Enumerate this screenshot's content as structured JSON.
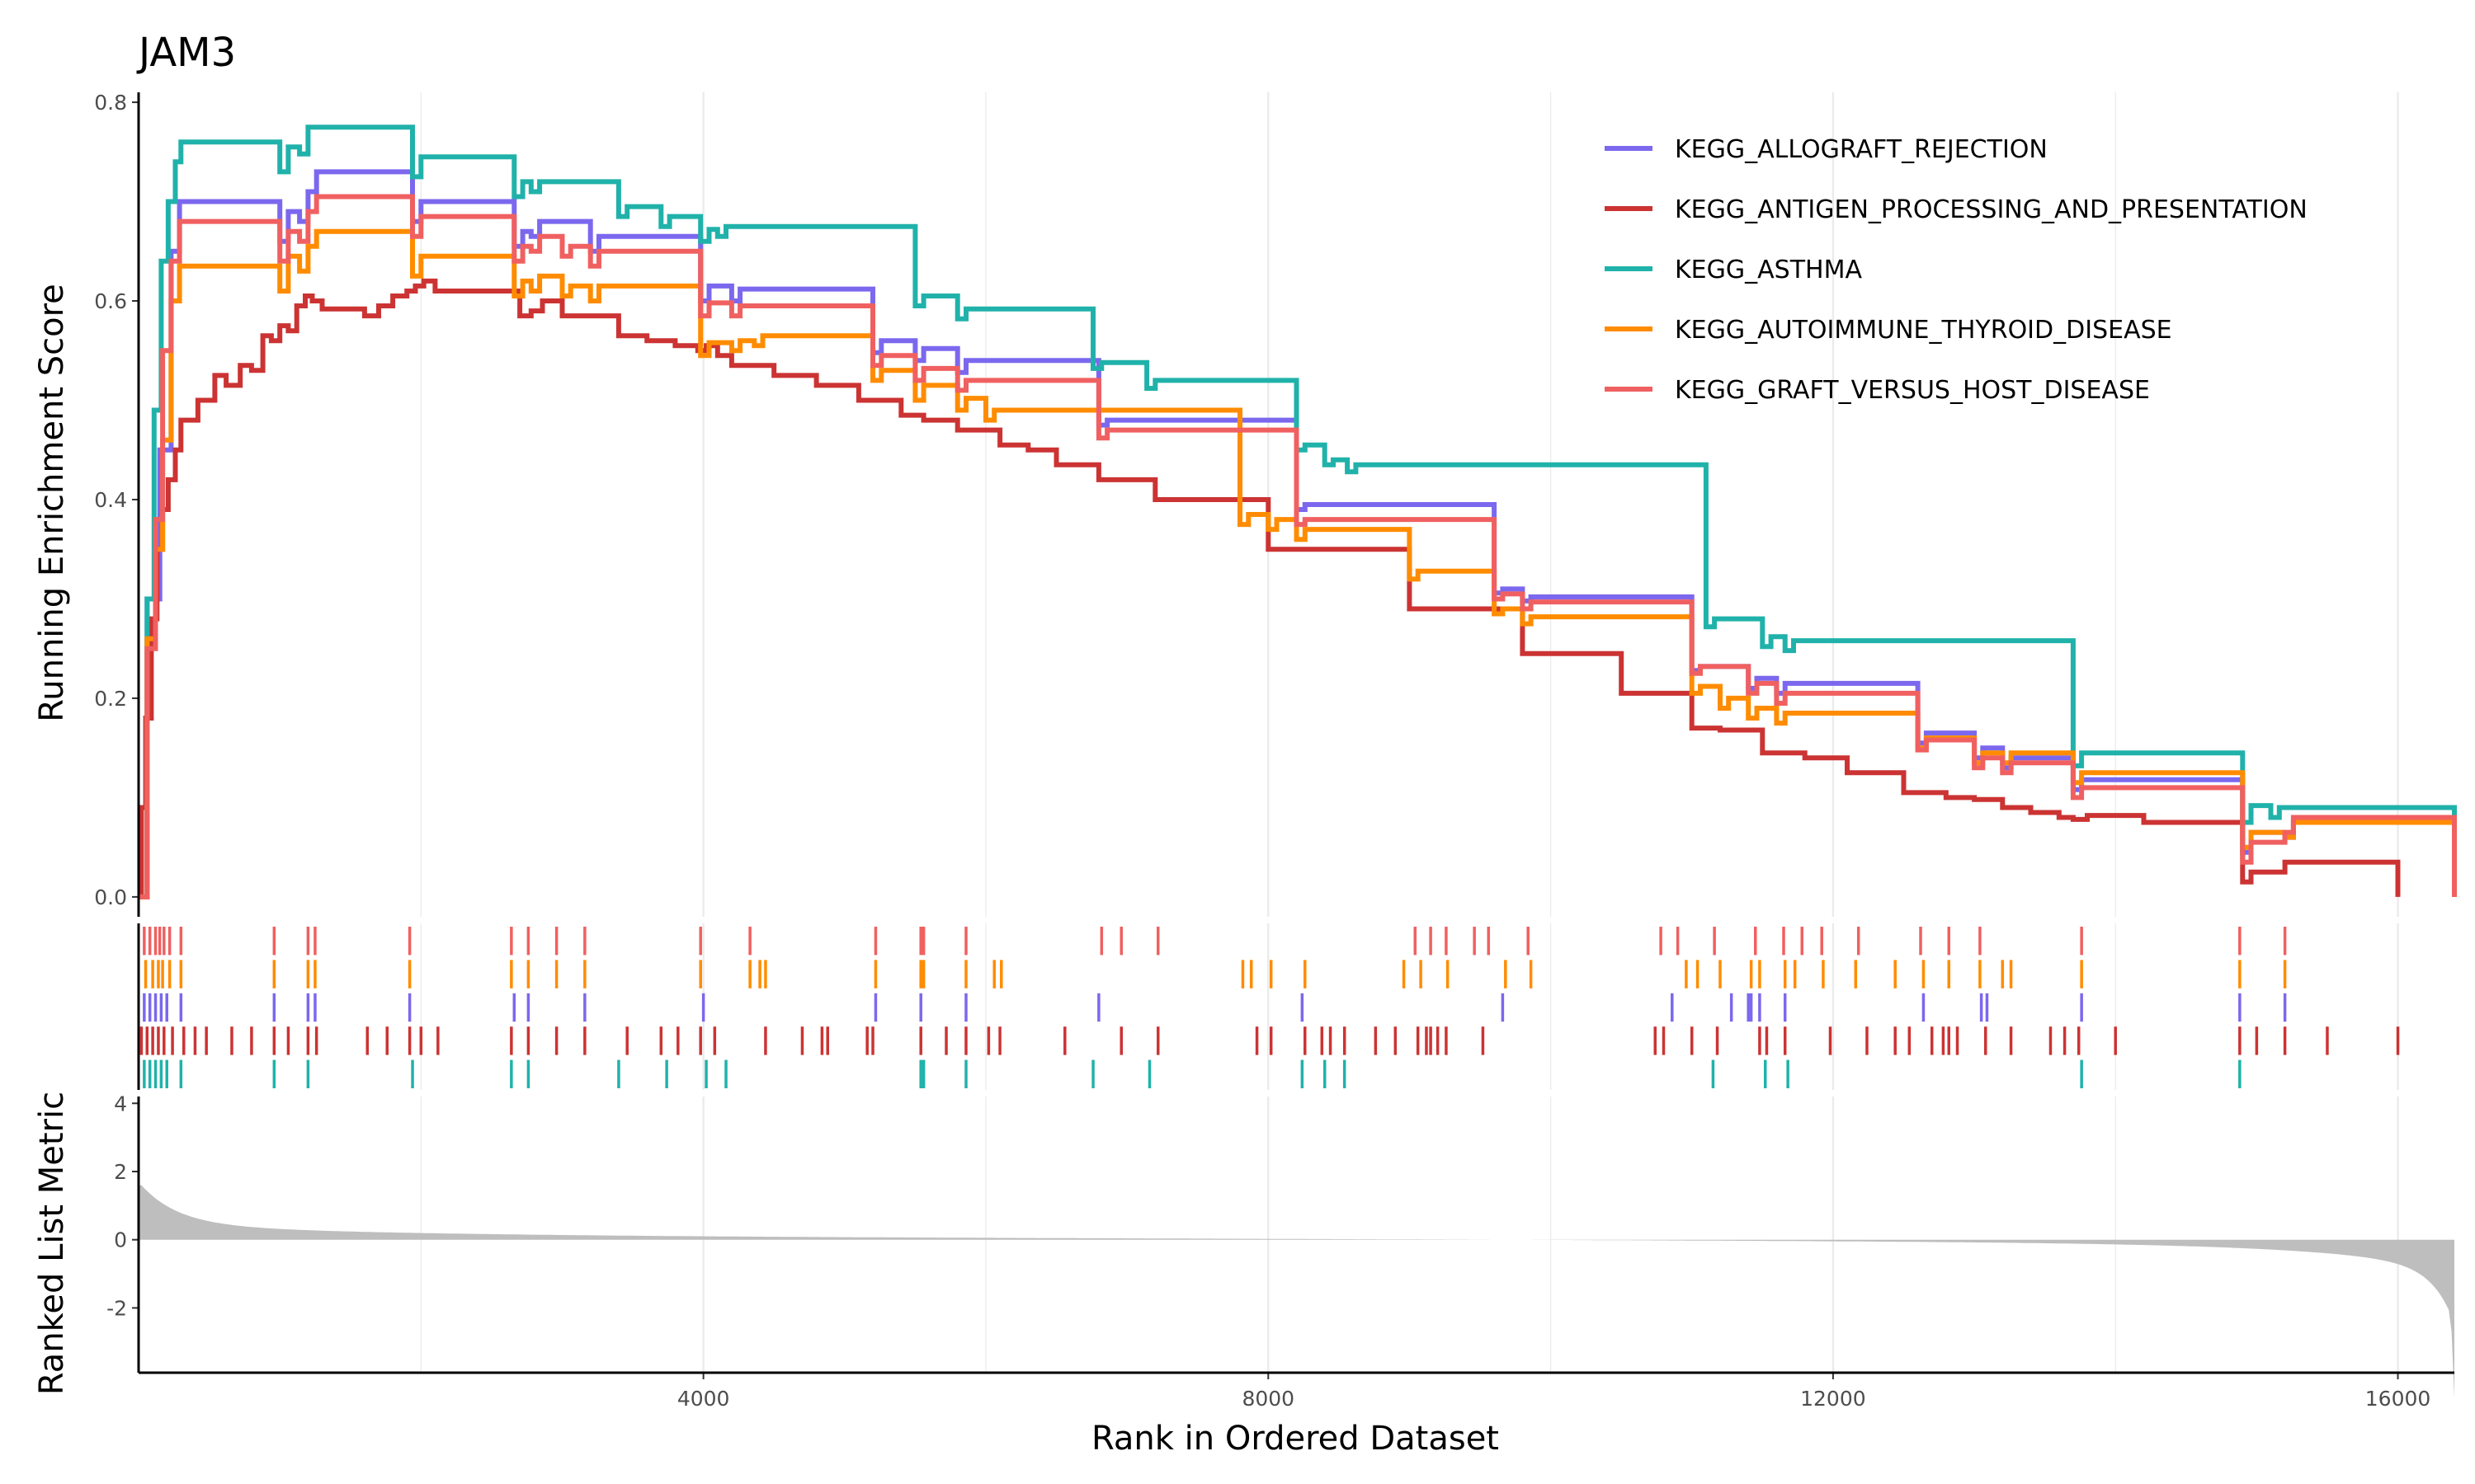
{
  "chart_data": {
    "type": "line",
    "title": "JAM3",
    "xlabel": "Rank in Ordered Dataset",
    "ylabel_top": "Running Enrichment Score",
    "ylabel_bottom": "Ranked List Metric",
    "xlim": [
      0,
      16400
    ],
    "x_ticks": [
      4000,
      8000,
      12000,
      16000
    ],
    "ylim_top": [
      -0.02,
      0.81
    ],
    "y_ticks_top": [
      0.0,
      0.2,
      0.4,
      0.6,
      0.8
    ],
    "ylim_bottom": [
      -3.9,
      4.2
    ],
    "y_ticks_bottom": [
      -2,
      0,
      2,
      4
    ],
    "grid": "vertical major and minor lines",
    "legend_position": "top-right",
    "series": [
      {
        "name": "KEGG_ALLOGRAFT_REJECTION",
        "color": "#7B68EE",
        "x": [
          0,
          60,
          150,
          230,
          290,
          1000,
          1060,
          1140,
          1200,
          1260,
          1940,
          2000,
          2660,
          2720,
          2780,
          2840,
          3200,
          3260,
          3980,
          4040,
          4200,
          4260,
          5200,
          5260,
          5500,
          5560,
          5800,
          5860,
          6800,
          6860,
          8200,
          8260,
          9600,
          9660,
          9800,
          9860,
          11000,
          11060,
          11400,
          11460,
          11600,
          11660,
          12600,
          12660,
          13000,
          13060,
          13200,
          13260,
          13700,
          13760,
          14900,
          14960,
          15200,
          15260,
          16400
        ],
        "y": [
          0.0,
          0.3,
          0.45,
          0.65,
          0.7,
          0.66,
          0.69,
          0.68,
          0.71,
          0.73,
          0.68,
          0.7,
          0.655,
          0.67,
          0.665,
          0.68,
          0.65,
          0.665,
          0.6,
          0.615,
          0.6,
          0.612,
          0.548,
          0.56,
          0.54,
          0.552,
          0.528,
          0.54,
          0.475,
          0.48,
          0.39,
          0.395,
          0.306,
          0.31,
          0.298,
          0.302,
          0.228,
          0.232,
          0.21,
          0.22,
          0.205,
          0.215,
          0.155,
          0.165,
          0.14,
          0.15,
          0.13,
          0.14,
          0.108,
          0.118,
          0.045,
          0.065,
          0.06,
          0.075,
          0.0
        ]
      },
      {
        "name": "KEGG_ANTIGEN_PROCESSING_AND_PRESENTATION",
        "color": "#CC3333",
        "x": [
          0,
          20,
          50,
          90,
          130,
          170,
          210,
          260,
          300,
          340,
          420,
          480,
          540,
          620,
          720,
          800,
          880,
          940,
          1000,
          1060,
          1120,
          1180,
          1230,
          1300,
          1600,
          1700,
          1800,
          1900,
          1960,
          2020,
          2100,
          2700,
          2780,
          2860,
          3000,
          3400,
          3600,
          3800,
          3960,
          4020,
          4100,
          4200,
          4500,
          4800,
          5100,
          5400,
          5560,
          5800,
          6100,
          6300,
          6500,
          6800,
          7200,
          8000,
          9000,
          9800,
          10500,
          11000,
          11200,
          11500,
          11800,
          12100,
          12500,
          12800,
          13000,
          13200,
          13400,
          13600,
          13700,
          13800,
          14200,
          14900,
          14960,
          15100,
          15200,
          15460,
          16000,
          16000
        ],
        "y": [
          0.0,
          0.09,
          0.18,
          0.28,
          0.35,
          0.39,
          0.42,
          0.45,
          0.48,
          0.48,
          0.5,
          0.5,
          0.525,
          0.515,
          0.535,
          0.53,
          0.565,
          0.56,
          0.575,
          0.57,
          0.595,
          0.605,
          0.6,
          0.592,
          0.585,
          0.595,
          0.605,
          0.61,
          0.615,
          0.62,
          0.61,
          0.585,
          0.59,
          0.6,
          0.585,
          0.565,
          0.56,
          0.555,
          0.55,
          0.555,
          0.545,
          0.535,
          0.525,
          0.515,
          0.5,
          0.485,
          0.48,
          0.47,
          0.455,
          0.45,
          0.435,
          0.42,
          0.4,
          0.35,
          0.29,
          0.245,
          0.205,
          0.17,
          0.168,
          0.145,
          0.14,
          0.125,
          0.105,
          0.1,
          0.098,
          0.09,
          0.085,
          0.08,
          0.078,
          0.082,
          0.075,
          0.015,
          0.025,
          0.025,
          0.035,
          0.035,
          0.0,
          0.02
        ]
      },
      {
        "name": "KEGG_ASTHMA",
        "color": "#20B2AA",
        "x": [
          0,
          60,
          110,
          160,
          210,
          260,
          300,
          1000,
          1060,
          1140,
          1200,
          1940,
          2000,
          2660,
          2720,
          2780,
          2840,
          3400,
          3460,
          3700,
          3760,
          3980,
          4040,
          4100,
          4160,
          5500,
          5560,
          5800,
          5860,
          6760,
          6820,
          7140,
          7200,
          8200,
          8260,
          8400,
          8460,
          8560,
          8620,
          11100,
          11160,
          11500,
          11560,
          11660,
          11720,
          13700,
          13760,
          14900,
          14960,
          15100,
          15160,
          16400
        ],
        "y": [
          0.0,
          0.3,
          0.49,
          0.64,
          0.7,
          0.74,
          0.76,
          0.73,
          0.755,
          0.748,
          0.775,
          0.725,
          0.745,
          0.705,
          0.72,
          0.71,
          0.72,
          0.685,
          0.695,
          0.675,
          0.685,
          0.66,
          0.672,
          0.665,
          0.675,
          0.595,
          0.605,
          0.582,
          0.592,
          0.532,
          0.538,
          0.512,
          0.52,
          0.45,
          0.455,
          0.435,
          0.44,
          0.428,
          0.435,
          0.272,
          0.28,
          0.252,
          0.262,
          0.248,
          0.258,
          0.132,
          0.145,
          0.075,
          0.092,
          0.08,
          0.09,
          0.0
        ]
      },
      {
        "name": "KEGG_AUTOIMMUNE_THYROID_DISEASE",
        "color": "#FF8C00",
        "x": [
          0,
          60,
          120,
          170,
          230,
          290,
          1000,
          1060,
          1140,
          1200,
          1260,
          1940,
          2000,
          2660,
          2720,
          2780,
          2840,
          3000,
          3060,
          3200,
          3260,
          3980,
          4040,
          4200,
          4260,
          4360,
          4420,
          5200,
          5260,
          5500,
          5560,
          5800,
          5860,
          6000,
          6060,
          7800,
          7860,
          8000,
          8060,
          8200,
          8260,
          9000,
          9060,
          9600,
          9660,
          9800,
          9860,
          11000,
          11060,
          11200,
          11260,
          11400,
          11460,
          11600,
          11660,
          12600,
          12660,
          13000,
          13060,
          13200,
          13260,
          13700,
          13760,
          14900,
          14960,
          15200,
          15260,
          16400
        ],
        "y": [
          0.0,
          0.26,
          0.35,
          0.46,
          0.6,
          0.635,
          0.61,
          0.645,
          0.63,
          0.655,
          0.67,
          0.625,
          0.645,
          0.605,
          0.62,
          0.61,
          0.625,
          0.605,
          0.615,
          0.6,
          0.615,
          0.545,
          0.558,
          0.55,
          0.56,
          0.555,
          0.565,
          0.52,
          0.53,
          0.5,
          0.515,
          0.49,
          0.502,
          0.48,
          0.49,
          0.375,
          0.385,
          0.37,
          0.38,
          0.36,
          0.37,
          0.32,
          0.328,
          0.285,
          0.29,
          0.275,
          0.282,
          0.205,
          0.212,
          0.19,
          0.2,
          0.18,
          0.19,
          0.175,
          0.185,
          0.15,
          0.16,
          0.135,
          0.145,
          0.135,
          0.145,
          0.115,
          0.125,
          0.05,
          0.065,
          0.06,
          0.075,
          0.0
        ]
      },
      {
        "name": "KEGG_GRAFT_VERSUS_HOST_DISEASE",
        "color": "#F06060",
        "x": [
          0,
          60,
          120,
          170,
          230,
          290,
          1000,
          1060,
          1140,
          1200,
          1260,
          1940,
          2000,
          2660,
          2720,
          2780,
          2840,
          3000,
          3060,
          3200,
          3260,
          3980,
          4040,
          4200,
          4260,
          5200,
          5260,
          5500,
          5560,
          5800,
          5860,
          6800,
          6860,
          8200,
          8260,
          9600,
          9660,
          9800,
          9860,
          11000,
          11060,
          11400,
          11460,
          11600,
          11660,
          12600,
          12660,
          13000,
          13060,
          13200,
          13260,
          13700,
          13760,
          14900,
          14960,
          15200,
          15260,
          16400
        ],
        "y": [
          0.0,
          0.25,
          0.38,
          0.55,
          0.64,
          0.68,
          0.64,
          0.67,
          0.66,
          0.69,
          0.705,
          0.665,
          0.685,
          0.64,
          0.655,
          0.65,
          0.665,
          0.645,
          0.655,
          0.635,
          0.65,
          0.585,
          0.598,
          0.585,
          0.595,
          0.535,
          0.545,
          0.52,
          0.532,
          0.51,
          0.52,
          0.462,
          0.47,
          0.375,
          0.38,
          0.3,
          0.305,
          0.29,
          0.297,
          0.225,
          0.232,
          0.205,
          0.215,
          0.195,
          0.205,
          0.148,
          0.158,
          0.13,
          0.14,
          0.125,
          0.135,
          0.1,
          0.11,
          0.035,
          0.055,
          0.065,
          0.08,
          0.0
        ]
      }
    ],
    "hits": [
      {
        "series": "KEGG_GRAFT_VERSUS_HOST_DISEASE",
        "ranks": [
          40,
          80,
          120,
          150,
          180,
          220,
          300,
          960,
          1200,
          1250,
          1920,
          2640,
          2760,
          2960,
          3160,
          3980,
          4330,
          5220,
          5540,
          5560,
          5860,
          6820,
          6960,
          7220,
          9040,
          9150,
          9260,
          9460,
          9560,
          9840,
          10780,
          10900,
          11160,
          11450,
          11650,
          11780,
          11920,
          12180,
          12620,
          12820,
          13040,
          13760,
          14880,
          15200
        ]
      },
      {
        "series": "KEGG_AUTOIMMUNE_THYROID_DISEASE",
        "ranks": [
          50,
          100,
          140,
          170,
          220,
          300,
          960,
          1200,
          1250,
          1920,
          2640,
          2760,
          2960,
          3160,
          3980,
          4330,
          4400,
          4440,
          5220,
          5540,
          5560,
          5860,
          6060,
          6110,
          7820,
          7880,
          8020,
          8260,
          8960,
          9080,
          9270,
          9680,
          9860,
          10960,
          11040,
          11200,
          11420,
          11480,
          11660,
          11730,
          11930,
          12160,
          12440,
          12640,
          12820,
          13040,
          13200,
          13260,
          13760,
          14880,
          15200
        ]
      },
      {
        "series": "KEGG_ALLOGRAFT_REJECTION",
        "ranks": [
          40,
          80,
          120,
          160,
          200,
          300,
          960,
          1200,
          1250,
          1920,
          2660,
          2760,
          3160,
          4000,
          5220,
          5540,
          5860,
          6800,
          8240,
          9660,
          10860,
          11280,
          11400,
          11420,
          11480,
          11660,
          12640,
          13050,
          13090,
          13760,
          14880,
          15200
        ]
      },
      {
        "series": "KEGG_ANTIGEN_PROCESSING_AND_PRESENTATION",
        "ranks": [
          20,
          60,
          100,
          140,
          180,
          240,
          320,
          400,
          480,
          660,
          800,
          960,
          1060,
          1200,
          1260,
          1620,
          1760,
          1920,
          2000,
          2120,
          2640,
          2760,
          2960,
          3160,
          3460,
          3700,
          3820,
          3980,
          4080,
          4440,
          4700,
          4840,
          4880,
          5160,
          5200,
          5540,
          5720,
          5860,
          6020,
          6100,
          6560,
          6960,
          7220,
          7920,
          8020,
          8260,
          8380,
          8440,
          8540,
          8760,
          8900,
          9060,
          9120,
          9150,
          9200,
          9260,
          9520,
          10740,
          10800,
          11000,
          11180,
          11480,
          11530,
          11660,
          11980,
          12240,
          12440,
          12540,
          12700,
          12780,
          12820,
          12880,
          13080,
          13260,
          13540,
          13640,
          13740,
          14000,
          14880,
          15000,
          15200,
          15500,
          16000
        ]
      },
      {
        "series": "KEGG_ASTHMA",
        "ranks": [
          40,
          80,
          120,
          160,
          200,
          300,
          960,
          1200,
          1940,
          2640,
          2760,
          3400,
          3740,
          4020,
          4160,
          5540,
          5560,
          5860,
          6760,
          7160,
          8240,
          8400,
          8540,
          11150,
          11520,
          11680,
          13760,
          14880
        ]
      }
    ]
  }
}
